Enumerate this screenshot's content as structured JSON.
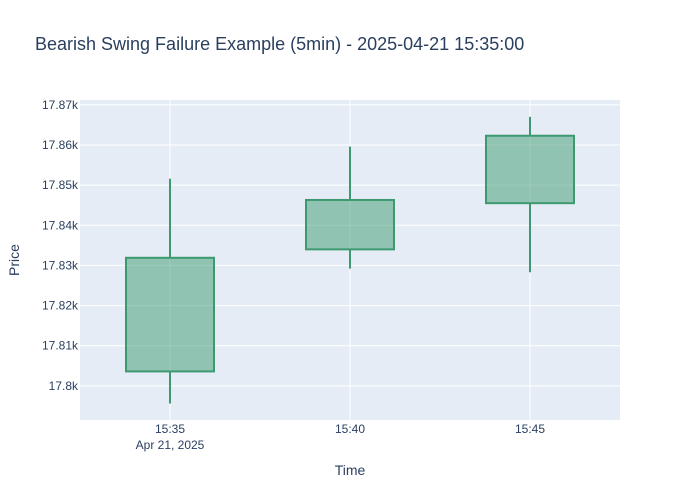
{
  "chart_data": {
    "type": "candlestick",
    "title": "Bearish Swing Failure Example (5min) - 2025-04-21 15:35:00",
    "xlabel": "Time",
    "ylabel": "Price",
    "x_ticks": [
      {
        "label": "15:35",
        "sublabel": "Apr 21, 2025"
      },
      {
        "label": "15:40",
        "sublabel": ""
      },
      {
        "label": "15:45",
        "sublabel": ""
      }
    ],
    "y_ticks": [
      {
        "value": 17800,
        "label": "17.8k"
      },
      {
        "value": 17810,
        "label": "17.81k"
      },
      {
        "value": 17820,
        "label": "17.82k"
      },
      {
        "value": 17830,
        "label": "17.83k"
      },
      {
        "value": 17840,
        "label": "17.84k"
      },
      {
        "value": 17850,
        "label": "17.85k"
      },
      {
        "value": 17860,
        "label": "17.86k"
      },
      {
        "value": 17870,
        "label": "17.87k"
      }
    ],
    "ylim": [
      17791.5,
      17871.2
    ],
    "candles": [
      {
        "time": "2025-04-21 15:35",
        "open": 17803.6,
        "high": 17851.6,
        "low": 17795.6,
        "close": 17831.9
      },
      {
        "time": "2025-04-21 15:40",
        "open": 17834.0,
        "high": 17859.6,
        "low": 17829.2,
        "close": 17846.3
      },
      {
        "time": "2025-04-21 15:45",
        "open": 17845.5,
        "high": 17867.0,
        "low": 17828.3,
        "close": 17862.3
      }
    ],
    "colors": {
      "increasing_line": "#3d9970",
      "increasing_fill": "rgba(61,153,112,0.5)",
      "plot_bg": "#e5ecf6",
      "grid": "#ffffff",
      "text": "#2a3f5f"
    }
  }
}
